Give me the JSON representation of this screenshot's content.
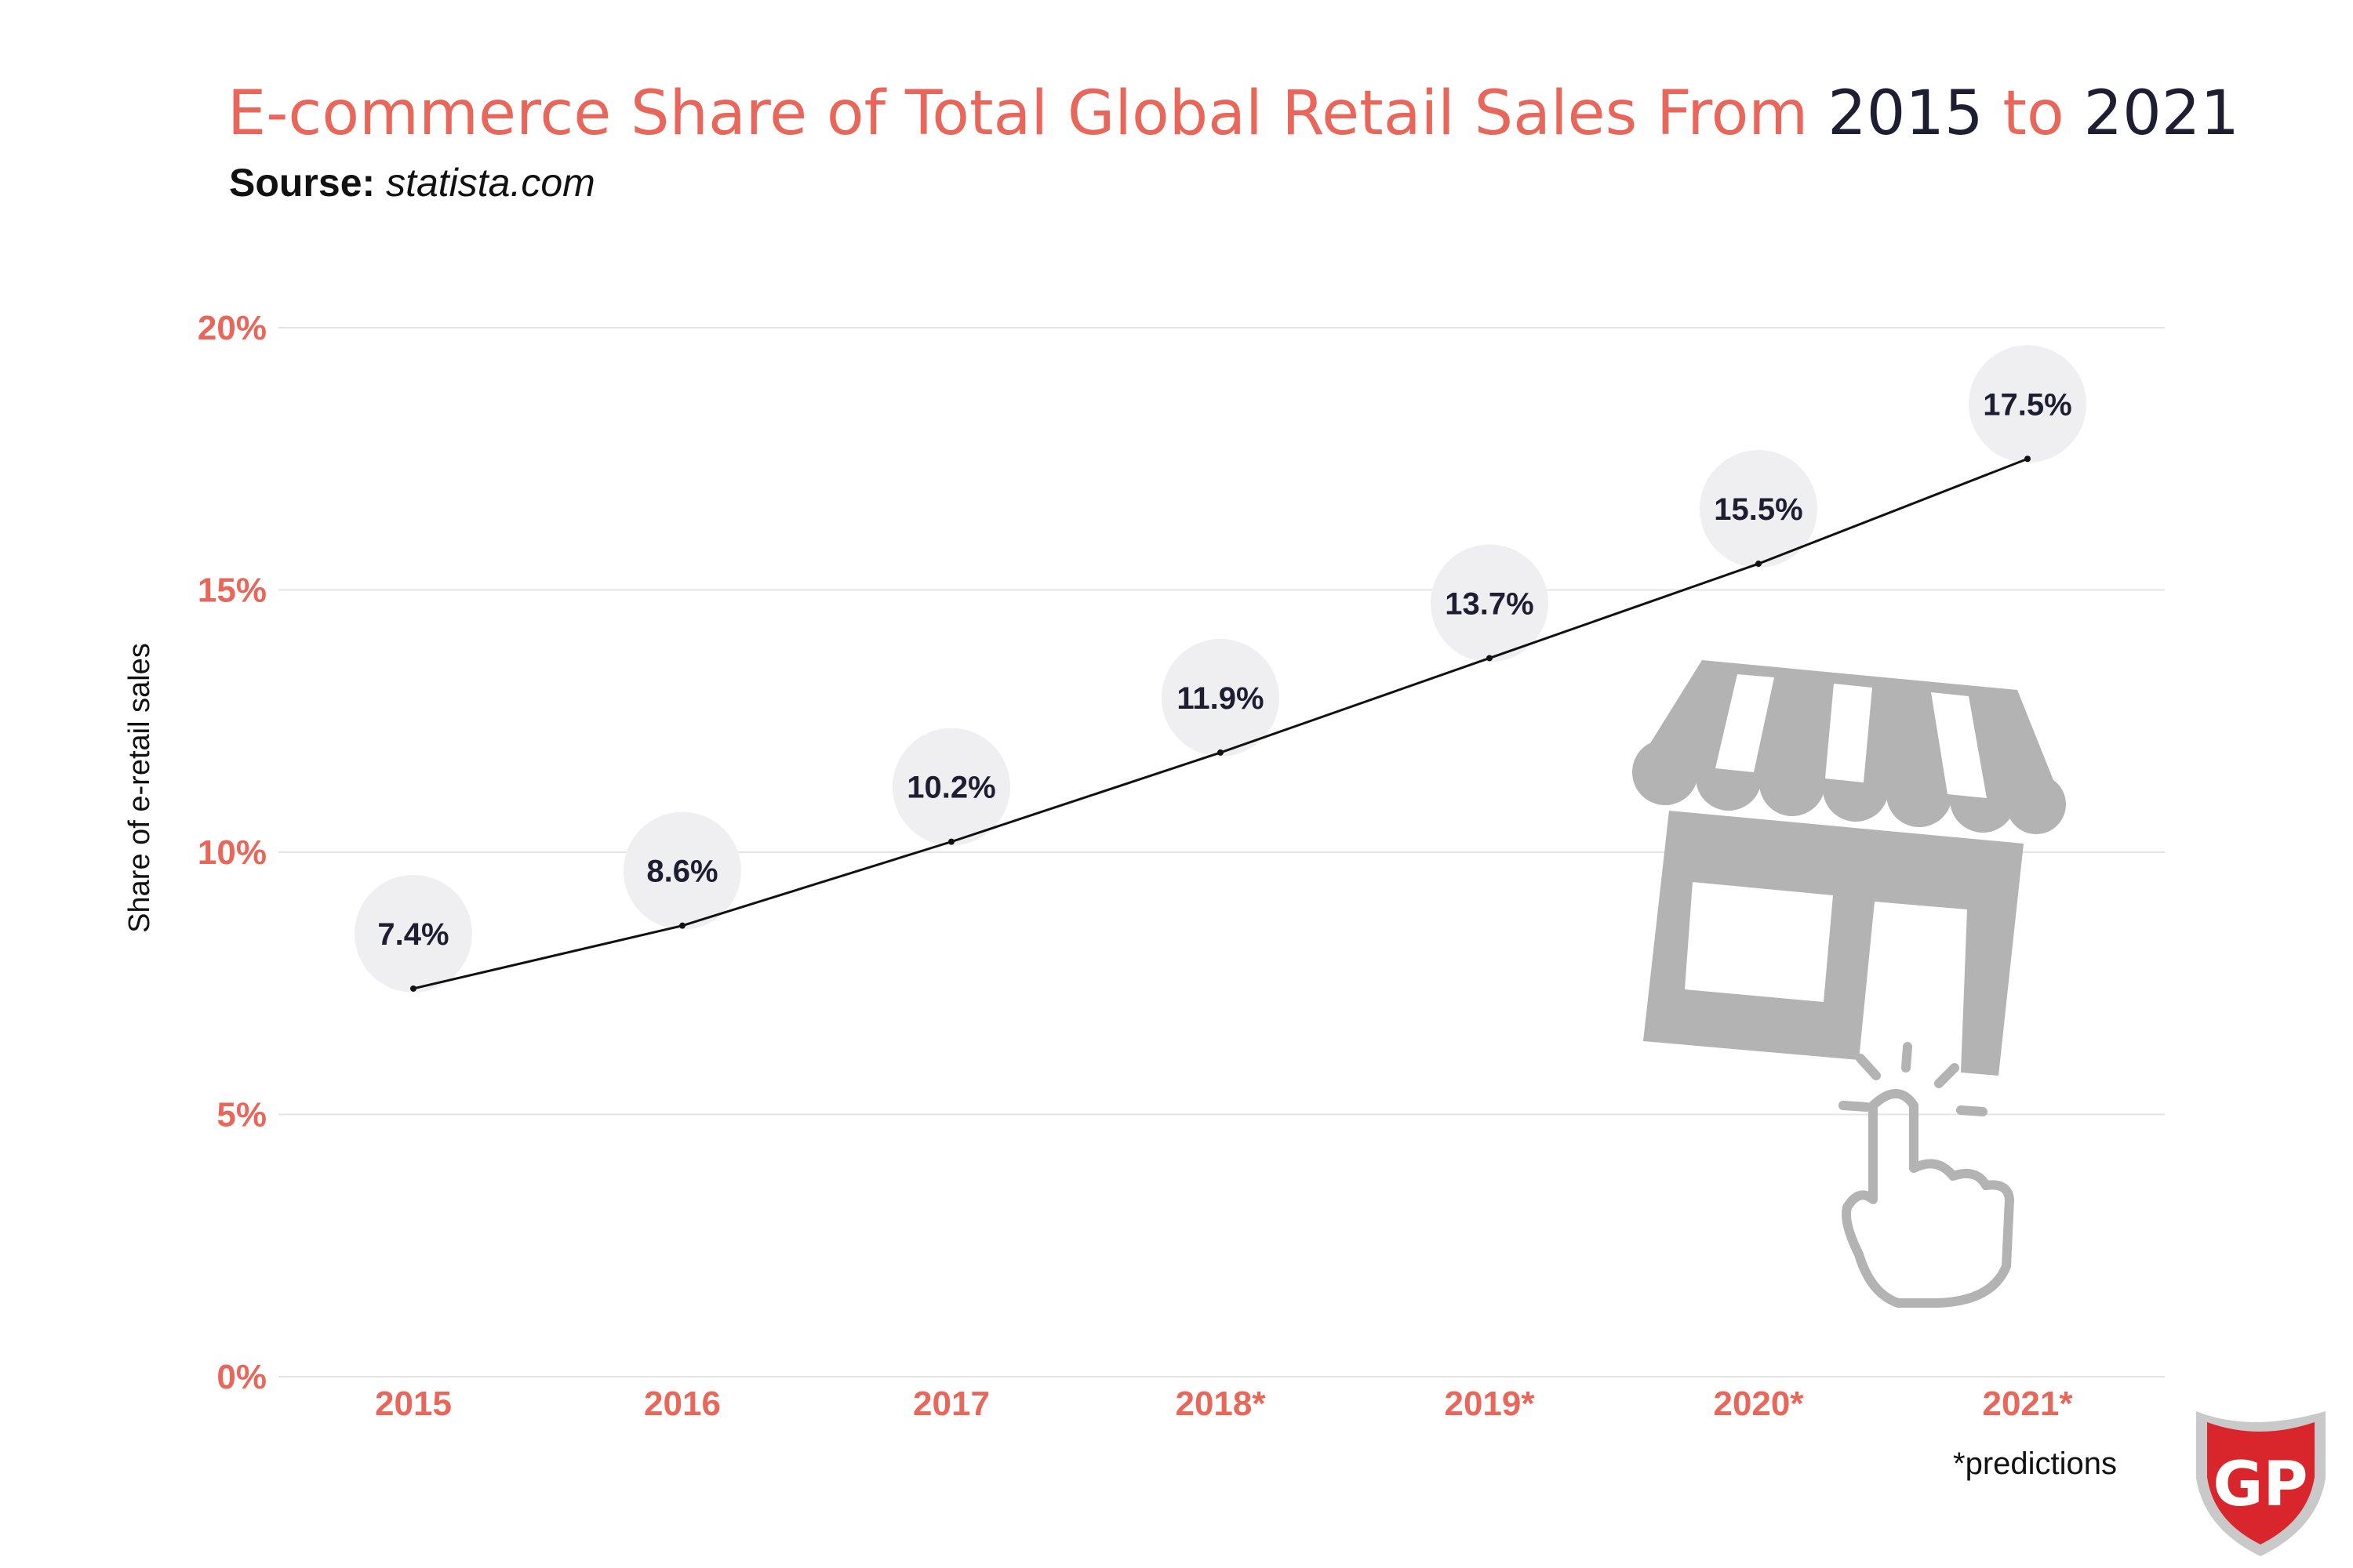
{
  "header": {
    "title_part1": "E-commerce Share of Total Global Retail Sales From ",
    "title_year_start": "2015",
    "title_part2": " to ",
    "title_year_end": "2021",
    "source_label": "Sourse:",
    "source_value": "statista.com"
  },
  "footnote": "*predictions",
  "logo": {
    "text": "GP",
    "colors": {
      "red": "#d9262c",
      "silver": "#c9c9c9"
    }
  },
  "illustration": {
    "icon": "storefront-click-icon",
    "color": "#b3b3b3"
  },
  "colors": {
    "accent": "#e8675a",
    "dark": "#1e1e33",
    "grid": "#e4e4e4",
    "bubble": "#efeff1",
    "line": "#111111"
  },
  "chart_data": {
    "type": "line",
    "categories": [
      "2015",
      "2016",
      "2017",
      "2018*",
      "2019*",
      "2020*",
      "2021*"
    ],
    "series": [
      {
        "values": [
          7.4,
          8.6,
          10.2,
          11.9,
          13.7,
          15.5,
          17.5
        ]
      }
    ],
    "data_labels": [
      "7.4%",
      "8.6%",
      "10.2%",
      "11.9%",
      "13.7%",
      "15.5%",
      "17.5%"
    ],
    "ylabel": "Share of e-retail sales",
    "ylim": [
      0,
      20
    ],
    "yticks": [
      0,
      5,
      10,
      15,
      20
    ],
    "ytick_labels": [
      "0%",
      "5%",
      "10%",
      "15%",
      "20%"
    ],
    "grid": true,
    "legend": "none"
  }
}
